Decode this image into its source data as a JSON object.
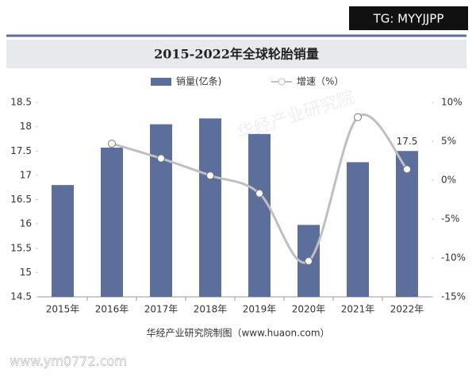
{
  "chart_data": {
    "type": "bar_line",
    "title": "2015-2022年全球轮胎销量",
    "categories": [
      "2015年",
      "2016年",
      "2017年",
      "2018年",
      "2019年",
      "2020年",
      "2021年",
      "2022年"
    ],
    "series": [
      {
        "name": "销量(亿条)",
        "color": "#5b6e9c",
        "type": "bar",
        "values": [
          16.8,
          17.57,
          18.05,
          18.17,
          17.85,
          15.98,
          17.27,
          17.5
        ],
        "value_labels": [
          null,
          null,
          null,
          null,
          null,
          null,
          null,
          "17.5"
        ]
      },
      {
        "name": "增速（%）",
        "color": "#bfbfbf",
        "type": "line",
        "axis": "y2",
        "values": [
          null,
          4.7,
          2.8,
          0.6,
          -1.7,
          -10.4,
          8.1,
          1.4
        ]
      }
    ],
    "ylim": [
      14.5,
      18.5
    ],
    "yticks": [
      14.5,
      15,
      15.5,
      16,
      16.5,
      17,
      17.5,
      18,
      18.5
    ],
    "y2lim": [
      -15,
      10
    ],
    "y2ticks": [
      {
        "value": -15,
        "label": "-15%"
      },
      {
        "value": -10,
        "label": "-10%"
      },
      {
        "value": -5,
        "label": "-5%"
      },
      {
        "value": 0,
        "label": "0%"
      },
      {
        "value": 5,
        "label": "5%"
      },
      {
        "value": 10,
        "label": "10%"
      }
    ],
    "grid": false
  },
  "source": "华经产业研究院制图（www.huaon.com）",
  "watermarks": [
    "TG: MYYJJPP",
    "www.ym0772.com",
    "华经产业研究院"
  ]
}
